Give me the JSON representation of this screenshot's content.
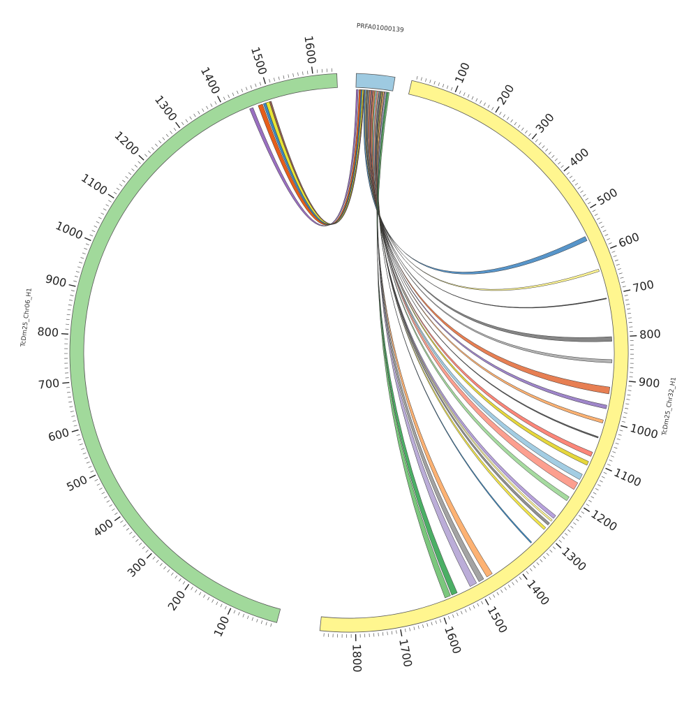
{
  "chart_data": {
    "type": "chord",
    "title": "",
    "chromosomes": [
      {
        "id": "prfa",
        "name": "PRFA01000139",
        "color": "#9ecae1",
        "start_deg": 1.5,
        "end_deg": 9.5,
        "ticks": []
      },
      {
        "id": "chr32",
        "name": "TcDm25_Chr32_H1",
        "color": "#fff68f",
        "start_deg": 13,
        "end_deg": 186,
        "length": 1880,
        "major_tick_step": 100,
        "minor_tick_step": 10,
        "ticks": [
          {
            "value": 100,
            "label": "100"
          },
          {
            "value": 200,
            "label": "200"
          },
          {
            "value": 300,
            "label": "300"
          },
          {
            "value": 400,
            "label": "400"
          },
          {
            "value": 500,
            "label": "500"
          },
          {
            "value": 600,
            "label": "600"
          },
          {
            "value": 700,
            "label": "700"
          },
          {
            "value": 800,
            "label": "800"
          },
          {
            "value": 900,
            "label": "900"
          },
          {
            "value": 1000,
            "label": "1000"
          },
          {
            "value": 1100,
            "label": "1100"
          },
          {
            "value": 1200,
            "label": "1200"
          },
          {
            "value": 1300,
            "label": "1300"
          },
          {
            "value": 1400,
            "label": "1400"
          },
          {
            "value": 1500,
            "label": "1500"
          },
          {
            "value": 1600,
            "label": "1600"
          },
          {
            "value": 1700,
            "label": "1700"
          },
          {
            "value": 1800,
            "label": "1800"
          }
        ]
      },
      {
        "id": "chr06",
        "name": "TcDm25_Chr06_H1",
        "color": "#a1d99b",
        "start_deg": 195,
        "end_deg": 357.5,
        "length": 1650,
        "major_tick_step": 100,
        "minor_tick_step": 10,
        "ticks": [
          {
            "value": 100,
            "label": "100"
          },
          {
            "value": 200,
            "label": "200"
          },
          {
            "value": 300,
            "label": "300"
          },
          {
            "value": 400,
            "label": "400"
          },
          {
            "value": 500,
            "label": "500"
          },
          {
            "value": 600,
            "label": "600"
          },
          {
            "value": 700,
            "label": "700"
          },
          {
            "value": 800,
            "label": "800"
          },
          {
            "value": 900,
            "label": "900"
          },
          {
            "value": 1000,
            "label": "1000"
          },
          {
            "value": 1100,
            "label": "1100"
          },
          {
            "value": 1200,
            "label": "1200"
          },
          {
            "value": 1300,
            "label": "1300"
          },
          {
            "value": 1400,
            "label": "1400"
          },
          {
            "value": 1500,
            "label": "1500"
          },
          {
            "value": 1600,
            "label": "1600"
          }
        ]
      }
    ],
    "links": [
      {
        "from_deg": [
          1.6,
          2.0
        ],
        "to_deg": [
          337.8,
          338.6
        ],
        "color": "#9467bd"
      },
      {
        "from_deg": [
          2.2,
          2.6
        ],
        "to_deg": [
          339.8,
          340.8
        ],
        "color": "#e6550d"
      },
      {
        "from_deg": [
          2.6,
          2.9
        ],
        "to_deg": [
          341.0,
          341.6
        ],
        "color": "#3182bd"
      },
      {
        "from_deg": [
          2.9,
          3.2
        ],
        "to_deg": [
          341.6,
          342.4
        ],
        "color": "#e7e32c"
      },
      {
        "from_deg": [
          3.2,
          3.4
        ],
        "to_deg": [
          342.4,
          342.8
        ],
        "color": "#8c564b"
      },
      {
        "from_deg": [
          3.4,
          3.7
        ],
        "to_deg": [
          63.8,
          64.8
        ],
        "color": "#4e8fc7"
      },
      {
        "from_deg": [
          3.7,
          3.9
        ],
        "to_deg": [
          71.5,
          72.0
        ],
        "color": "#fff68f"
      },
      {
        "from_deg": [
          3.9,
          4.0
        ],
        "to_deg": [
          78.0,
          78.2
        ],
        "color": "#444444"
      },
      {
        "from_deg": [
          4.0,
          4.3
        ],
        "to_deg": [
          86.5,
          87.5
        ],
        "color": "#7f7f7f"
      },
      {
        "from_deg": [
          4.3,
          4.5
        ],
        "to_deg": [
          91.5,
          92.2
        ],
        "color": "#b0b0b0"
      },
      {
        "from_deg": [
          4.5,
          4.8
        ],
        "to_deg": [
          97.5,
          99.0
        ],
        "color": "#e6784a"
      },
      {
        "from_deg": [
          4.8,
          5.0
        ],
        "to_deg": [
          101.5,
          102.3
        ],
        "color": "#9a7fc7"
      },
      {
        "from_deg": [
          5.0,
          5.2
        ],
        "to_deg": [
          104.8,
          105.5
        ],
        "color": "#fdae6b"
      },
      {
        "from_deg": [
          5.2,
          5.3
        ],
        "to_deg": [
          108.6,
          108.9
        ],
        "color": "#555555"
      },
      {
        "from_deg": [
          5.3,
          5.6
        ],
        "to_deg": [
          112.2,
          113.2
        ],
        "color": "#fb8072"
      },
      {
        "from_deg": [
          5.6,
          5.8
        ],
        "to_deg": [
          114.4,
          115.3
        ],
        "color": "#e5d532"
      },
      {
        "from_deg": [
          5.8,
          6.1
        ],
        "to_deg": [
          117.5,
          118.8
        ],
        "color": "#9ecae1"
      },
      {
        "from_deg": [
          6.1,
          6.4
        ],
        "to_deg": [
          119.6,
          121.3
        ],
        "color": "#fc9a89"
      },
      {
        "from_deg": [
          6.4,
          6.6
        ],
        "to_deg": [
          123.2,
          124.2
        ],
        "color": "#a1d99b"
      },
      {
        "from_deg": [
          6.6,
          6.8
        ],
        "to_deg": [
          128.2,
          129.0
        ],
        "color": "#b39ddb"
      },
      {
        "from_deg": [
          6.8,
          6.9
        ],
        "to_deg": [
          129.4,
          129.8
        ],
        "color": "#fff68f"
      },
      {
        "from_deg": [
          6.9,
          7.1
        ],
        "to_deg": [
          130.3,
          130.9
        ],
        "color": "#8a8a8a"
      },
      {
        "from_deg": [
          7.1,
          7.3
        ],
        "to_deg": [
          131.6,
          132.2
        ],
        "color": "#f0e442"
      },
      {
        "from_deg": [
          7.3,
          7.4
        ],
        "to_deg": [
          136.0,
          136.3
        ],
        "color": "#3182bd"
      },
      {
        "from_deg": [
          7.4,
          7.7
        ],
        "to_deg": [
          147.0,
          148.4
        ],
        "color": "#fdae6b"
      },
      {
        "from_deg": [
          7.7,
          7.9
        ],
        "to_deg": [
          149.2,
          150.4
        ],
        "color": "#9e9e9e"
      },
      {
        "from_deg": [
          7.9,
          8.2
        ],
        "to_deg": [
          151.0,
          152.6
        ],
        "color": "#b7a9d6"
      },
      {
        "from_deg": [
          8.2,
          8.5
        ],
        "to_deg": [
          155.7,
          157.0
        ],
        "color": "#41ab5d"
      },
      {
        "from_deg": [
          8.5,
          8.8
        ],
        "to_deg": [
          157.3,
          158.6
        ],
        "color": "#74c476"
      }
    ]
  }
}
